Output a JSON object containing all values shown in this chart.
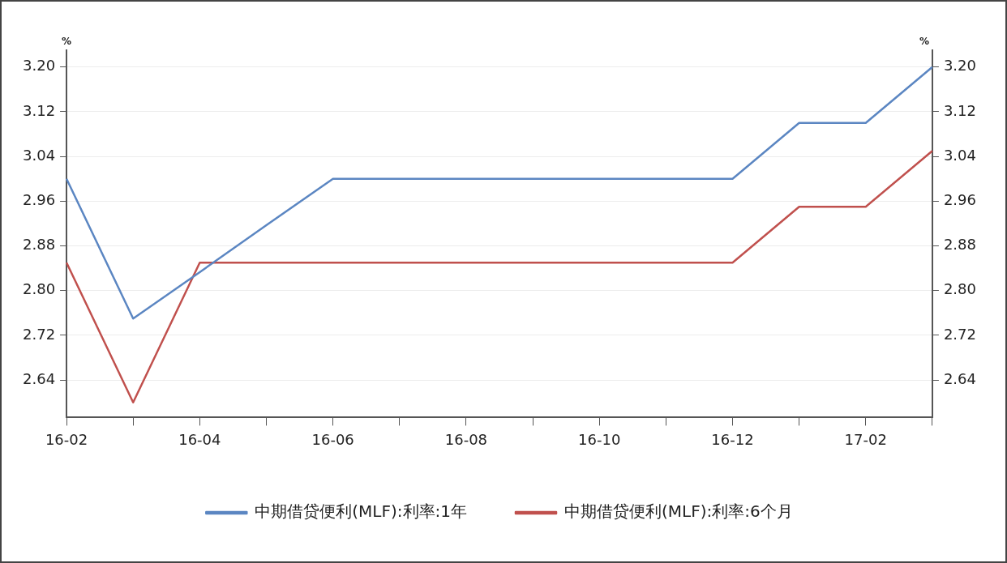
{
  "chart_data": {
    "type": "line",
    "categories": [
      "16-02",
      null,
      "16-04",
      null,
      "16-06",
      null,
      "16-08",
      null,
      "16-10",
      null,
      "16-12",
      null,
      "17-02",
      null
    ],
    "series": [
      {
        "name": "中期借贷便利(MLF):利率:1年",
        "color": "#5b86c2",
        "values": [
          3.0,
          2.75,
          2.833,
          2.917,
          3.0,
          3.0,
          3.0,
          3.0,
          3.0,
          3.0,
          3.0,
          3.1,
          3.1,
          3.2
        ]
      },
      {
        "name": "中期借贷便利(MLF):利率:6个月",
        "color": "#c0504d",
        "values": [
          2.85,
          2.6,
          2.85,
          2.85,
          2.85,
          2.85,
          2.85,
          2.85,
          2.85,
          2.85,
          2.85,
          2.95,
          2.95,
          3.05
        ]
      }
    ],
    "ylabel": "%",
    "y2label": "%",
    "ylim": [
      2.573,
      3.23
    ],
    "yticks": [
      {
        "value": 2.64,
        "label": "2.64"
      },
      {
        "value": 2.72,
        "label": "2.72"
      },
      {
        "value": 2.8,
        "label": "2.80"
      },
      {
        "value": 2.88,
        "label": "2.88"
      },
      {
        "value": 2.96,
        "label": "2.96"
      },
      {
        "value": 3.04,
        "label": "3.04"
      },
      {
        "value": 3.12,
        "label": "3.12"
      },
      {
        "value": 3.2,
        "label": "3.20"
      }
    ],
    "y2lim": [
      2.573,
      3.23
    ],
    "y2ticks": [
      {
        "value": 2.64,
        "label": "2.64"
      },
      {
        "value": 2.72,
        "label": "2.72"
      },
      {
        "value": 2.8,
        "label": "2.80"
      },
      {
        "value": 2.88,
        "label": "2.88"
      },
      {
        "value": 2.96,
        "label": "2.96"
      },
      {
        "value": 3.04,
        "label": "3.04"
      },
      {
        "value": 3.12,
        "label": "3.12"
      },
      {
        "value": 3.2,
        "label": "3.20"
      }
    ],
    "grid": "y",
    "legend": "bottom",
    "marker": "none",
    "line_style": "solid"
  }
}
